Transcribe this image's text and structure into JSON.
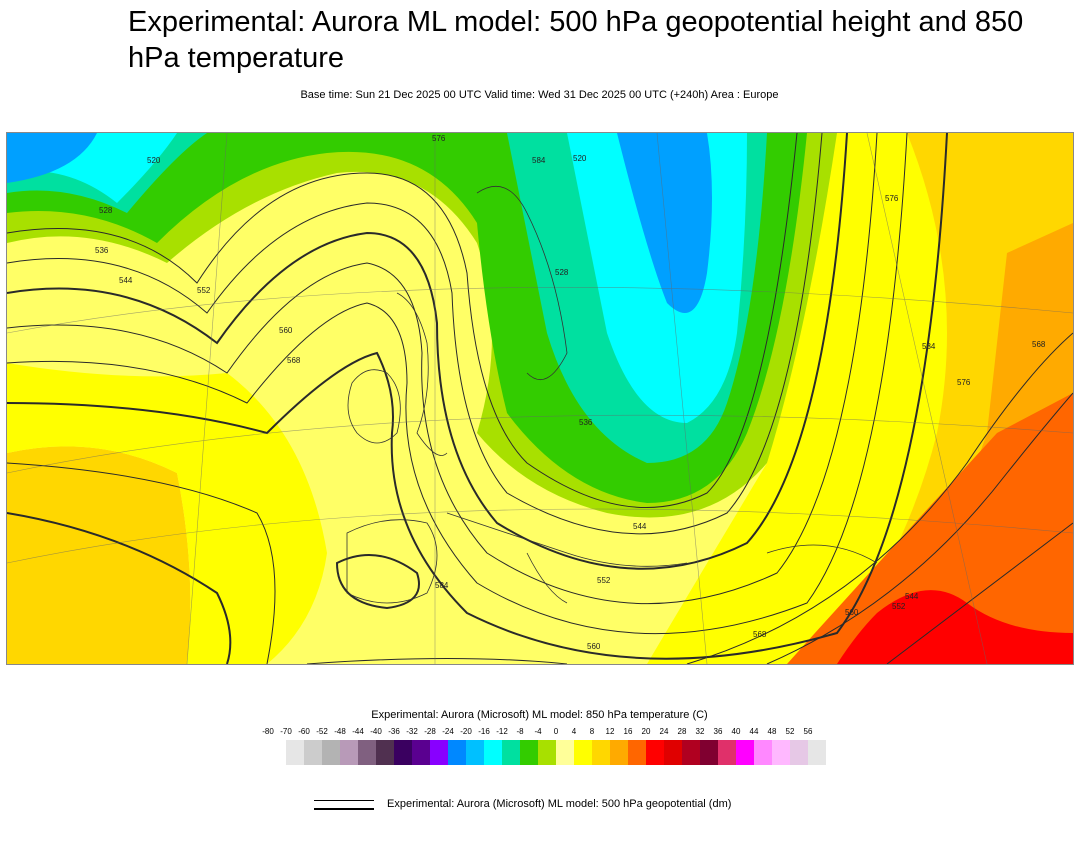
{
  "title": "Experimental: Aurora ML model: 500 hPa geopotential height and 850 hPa temperature",
  "subtitle": "Base time: Sun 21 Dec 2025 00 UTC Valid time: Wed 31 Dec 2025 00 UTC (+240h) Area : Europe",
  "map": {
    "contour_labels": [
      "520",
      "528",
      "536",
      "544",
      "552",
      "560",
      "568",
      "576",
      "584",
      "520",
      "528",
      "536",
      "544",
      "552",
      "560",
      "568",
      "576",
      "584",
      "576",
      "568",
      "560",
      "552",
      "544",
      "584"
    ],
    "colors": {
      "cyan": "#00ffff",
      "blue": "#00a0ff",
      "teal": "#00e0a0",
      "green": "#33cc00",
      "lime": "#a8e000",
      "pale_yellow": "#ffff66",
      "yellow": "#ffff00",
      "gold": "#ffd700",
      "orange": "#ffaa00",
      "dark_orange": "#ff6600",
      "red": "#ff0000"
    }
  },
  "legend": {
    "title": "Experimental: Aurora (Microsoft) ML model: 850 hPa temperature (C)",
    "labels": [
      "-80",
      "-70",
      "-60",
      "-52",
      "-48",
      "-44",
      "-40",
      "-36",
      "-32",
      "-28",
      "-24",
      "-20",
      "-16",
      "-12",
      "-8",
      "-4",
      "0",
      "4",
      "8",
      "12",
      "16",
      "20",
      "24",
      "28",
      "32",
      "36",
      "40",
      "44",
      "48",
      "52",
      "56"
    ],
    "colors": [
      "#e6e6e6",
      "#cccccc",
      "#b3b3b3",
      "#b89ab8",
      "#806080",
      "#503050",
      "#3a0060",
      "#5a0090",
      "#8800ff",
      "#0088ff",
      "#00c0ff",
      "#00ffff",
      "#00e0a0",
      "#33cc00",
      "#a8e000",
      "#ffff99",
      "#ffff00",
      "#ffd700",
      "#ffaa00",
      "#ff6600",
      "#ff0000",
      "#e00000",
      "#b00020",
      "#800030",
      "#e0306a",
      "#ff00ff",
      "#ff88ff",
      "#ffb8ff",
      "#e6c8e6",
      "#e6e6e6"
    ],
    "line_label": "Experimental: Aurora (Microsoft) ML model: 500 hPa geopotential (dm)"
  }
}
